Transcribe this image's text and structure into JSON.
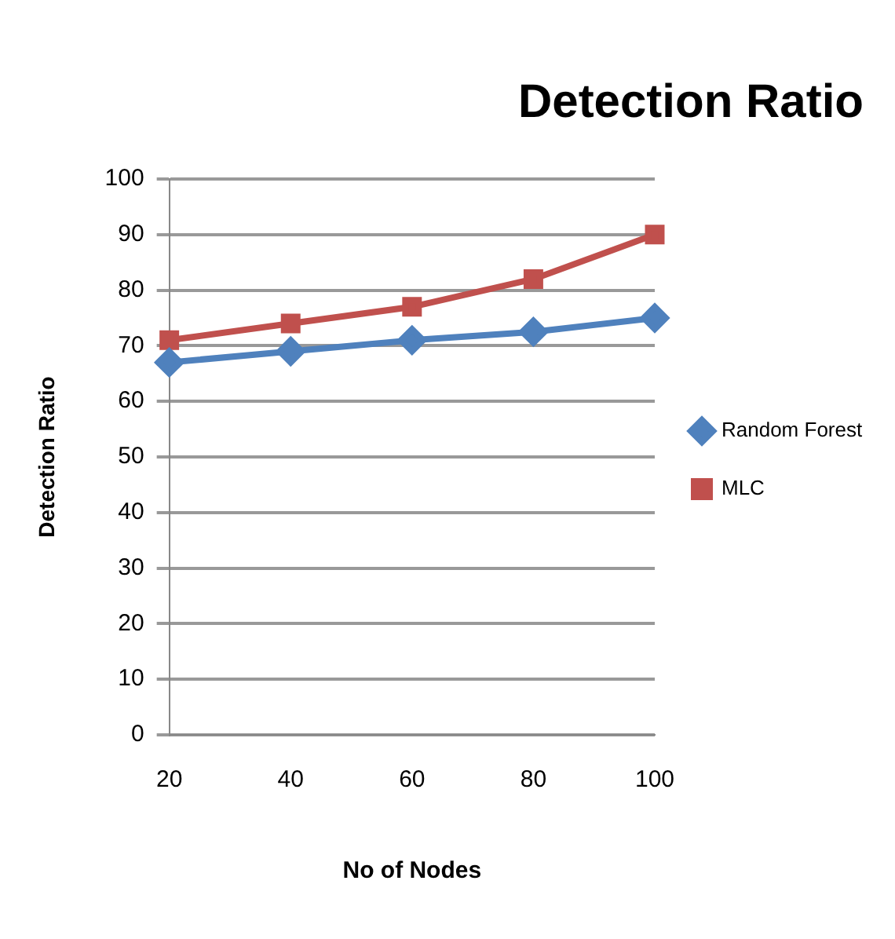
{
  "chart_data": {
    "type": "line",
    "title": "Detection Ratio",
    "xlabel": "No of Nodes",
    "ylabel": "Detection Ratio",
    "categories": [
      "20",
      "40",
      "60",
      "80",
      "100"
    ],
    "series": [
      {
        "name": "Random Forest",
        "color": "#4f81bd",
        "marker": "diamond",
        "values": [
          67,
          69,
          71,
          72.5,
          75
        ]
      },
      {
        "name": "MLC",
        "color": "#c0504d",
        "marker": "square",
        "values": [
          71,
          74,
          77,
          82,
          90
        ]
      }
    ],
    "ylim": [
      0,
      100
    ],
    "yticks": [
      0,
      10,
      20,
      30,
      40,
      50,
      60,
      70,
      80,
      90,
      100
    ],
    "grid": "y",
    "legend": "right"
  }
}
